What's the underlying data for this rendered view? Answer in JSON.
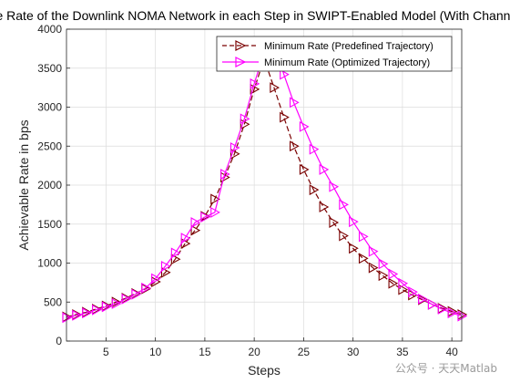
{
  "chart_data": {
    "type": "line",
    "title": "Achievable Rate of the Downlink NOMA Network in each Step in SWIPT-Enabled Model (With Channel Estimation)",
    "xlabel": "Steps",
    "ylabel": "Achievable Rate in bps",
    "xlim": [
      1,
      41
    ],
    "ylim": [
      0,
      4000
    ],
    "xticks": [
      5,
      10,
      15,
      20,
      25,
      30,
      35,
      40
    ],
    "yticks": [
      0,
      500,
      1000,
      1500,
      2000,
      2500,
      3000,
      3500,
      4000
    ],
    "grid": true,
    "legend_position": "top-right",
    "series": [
      {
        "name": "Minimum Rate (Predefined Trajectory)",
        "color": "#7a0000",
        "line_style": "dashed",
        "marker": "triangle-right",
        "x": [
          1,
          2,
          3,
          4,
          5,
          6,
          7,
          8,
          9,
          10,
          11,
          12,
          13,
          14,
          15,
          16,
          17,
          18,
          19,
          20,
          21,
          22,
          23,
          24,
          25,
          26,
          27,
          28,
          29,
          30,
          31,
          32,
          33,
          34,
          35,
          36,
          37,
          38,
          39,
          40,
          41
        ],
        "values": [
          310,
          340,
          370,
          410,
          450,
          500,
          550,
          610,
          670,
          760,
          880,
          1050,
          1250,
          1420,
          1600,
          1820,
          2100,
          2400,
          2780,
          3230,
          3620,
          3250,
          2870,
          2500,
          2200,
          1940,
          1720,
          1520,
          1350,
          1190,
          1060,
          940,
          840,
          740,
          660,
          590,
          530,
          470,
          420,
          380,
          340
        ]
      },
      {
        "name": "Minimum Rate (Optimized Trajectory)",
        "color": "#ff00ff",
        "line_style": "solid",
        "marker": "triangle-right",
        "x": [
          1,
          2,
          3,
          4,
          5,
          6,
          7,
          8,
          9,
          10,
          11,
          12,
          13,
          14,
          15,
          16,
          17,
          18,
          19,
          20,
          21,
          22,
          23,
          24,
          25,
          26,
          27,
          28,
          29,
          30,
          31,
          32,
          33,
          34,
          35,
          36,
          37,
          38,
          39,
          40,
          41
        ],
        "values": [
          300,
          330,
          360,
          400,
          440,
          480,
          540,
          600,
          680,
          800,
          960,
          1130,
          1320,
          1520,
          1590,
          1650,
          2140,
          2480,
          2850,
          3300,
          3700,
          3800,
          3420,
          3060,
          2750,
          2460,
          2200,
          1980,
          1750,
          1530,
          1340,
          1150,
          990,
          860,
          740,
          630,
          540,
          470,
          410,
          360,
          320
        ]
      }
    ]
  },
  "watermark": "公众号 · 天天Matlab"
}
